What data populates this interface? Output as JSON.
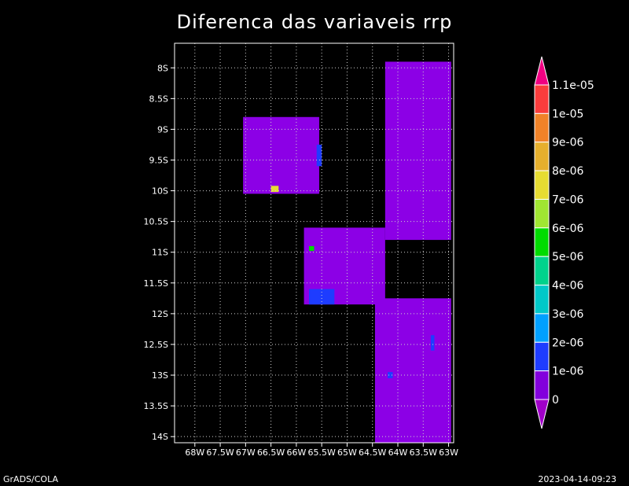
{
  "title": "Diferenca das variaveis rrp",
  "footer": {
    "left": "GrADS/COLA",
    "right": "2023-04-14-09:23"
  },
  "map": {
    "lon_range": [
      -68.4,
      -62.9
    ],
    "lat_range": [
      -14.1,
      -7.6
    ],
    "lon_ticks": [
      {
        "v": -68,
        "label": "68W"
      },
      {
        "v": -67.5,
        "label": "67.5W"
      },
      {
        "v": -67,
        "label": "67W"
      },
      {
        "v": -66.5,
        "label": "66.5W"
      },
      {
        "v": -66,
        "label": "66W"
      },
      {
        "v": -65.5,
        "label": "65.5W"
      },
      {
        "v": -65,
        "label": "65W"
      },
      {
        "v": -64.5,
        "label": "64.5W"
      },
      {
        "v": -64,
        "label": "64W"
      },
      {
        "v": -63.5,
        "label": "63.5W"
      },
      {
        "v": -63,
        "label": "63W"
      }
    ],
    "lat_ticks": [
      {
        "v": -8,
        "label": "8S"
      },
      {
        "v": -8.5,
        "label": "8.5S"
      },
      {
        "v": -9,
        "label": "9S"
      },
      {
        "v": -9.5,
        "label": "9.5S"
      },
      {
        "v": -10,
        "label": "10S"
      },
      {
        "v": -10.5,
        "label": "10.5S"
      },
      {
        "v": -11,
        "label": "11S"
      },
      {
        "v": -11.5,
        "label": "11.5S"
      },
      {
        "v": -12,
        "label": "12S"
      },
      {
        "v": -12.5,
        "label": "12.5S"
      },
      {
        "v": -13,
        "label": "13S"
      },
      {
        "v": -13.5,
        "label": "13.5S"
      },
      {
        "v": -14,
        "label": "14S"
      }
    ],
    "base_color": "#8c00e6",
    "regions": [
      {
        "name": "region-northwest",
        "lon": [
          -67.05,
          -65.55
        ],
        "lat": [
          -10.05,
          -8.8
        ]
      },
      {
        "name": "region-center",
        "lon": [
          -65.85,
          -64.25
        ],
        "lat": [
          -11.85,
          -10.6
        ]
      },
      {
        "name": "region-east-north",
        "lon": [
          -64.25,
          -62.95
        ],
        "lat": [
          -10.8,
          -7.9
        ]
      },
      {
        "name": "region-east-south",
        "lon": [
          -64.45,
          -62.95
        ],
        "lat": [
          -14.1,
          -11.75
        ]
      }
    ],
    "highlights": [
      {
        "name": "blue-patch-1",
        "lon": [
          -65.6,
          -65.5
        ],
        "lat": [
          -9.6,
          -9.25
        ],
        "color": "#1e3cff"
      },
      {
        "name": "blue-patch-2",
        "lon": [
          -65.75,
          -65.25
        ],
        "lat": [
          -11.85,
          -11.6
        ],
        "color": "#1e3cff"
      },
      {
        "name": "blue-patch-3",
        "lon": [
          -63.35,
          -63.28
        ],
        "lat": [
          -12.6,
          -12.35
        ],
        "color": "#1e3cff"
      },
      {
        "name": "blue-patch-4",
        "lon": [
          -64.2,
          -64.1
        ],
        "lat": [
          -13.05,
          -12.95
        ],
        "color": "#1e3cff"
      },
      {
        "name": "green-patch",
        "lon": [
          -65.75,
          -65.65
        ],
        "lat": [
          -10.98,
          -10.9
        ],
        "color": "#00dc00"
      },
      {
        "name": "yellow-patch",
        "lon": [
          -66.5,
          -66.35
        ],
        "lat": [
          -10.02,
          -9.92
        ],
        "color": "#e6dc32"
      }
    ]
  },
  "colorbar": {
    "labels": [
      "0",
      "1e-06",
      "2e-06",
      "3e-06",
      "4e-06",
      "5e-06",
      "6e-06",
      "7e-06",
      "8e-06",
      "9e-06",
      "1e-05",
      "1.1e-05"
    ],
    "colors": [
      "#a000c8",
      "#8200dc",
      "#1e3cff",
      "#00a0ff",
      "#00c8c8",
      "#00d28c",
      "#00dc00",
      "#a0e632",
      "#e6dc32",
      "#e6af2d",
      "#f08228",
      "#fa3c3c",
      "#f00082"
    ]
  }
}
